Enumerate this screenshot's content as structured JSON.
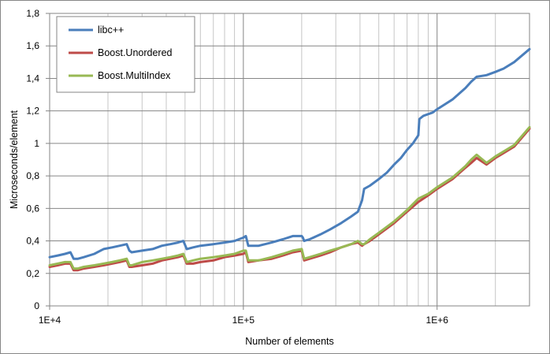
{
  "chart_data": {
    "type": "line",
    "title": "",
    "xlabel": "Number of elements",
    "ylabel": "Microseconds/element",
    "x_scale": "log",
    "xlim": [
      10000,
      3000000
    ],
    "ylim": [
      0,
      1.8
    ],
    "x_ticks": [
      {
        "value": 10000,
        "label": "1E+4"
      },
      {
        "value": 100000,
        "label": "1E+5"
      },
      {
        "value": 1000000,
        "label": "1E+6"
      }
    ],
    "y_ticks": [
      {
        "value": 0,
        "label": "0"
      },
      {
        "value": 0.2,
        "label": "0,2"
      },
      {
        "value": 0.4,
        "label": "0,4"
      },
      {
        "value": 0.6,
        "label": "0,6"
      },
      {
        "value": 0.8,
        "label": "0,8"
      },
      {
        "value": 1.0,
        "label": "1"
      },
      {
        "value": 1.2,
        "label": "1,2"
      },
      {
        "value": 1.4,
        "label": "1,4"
      },
      {
        "value": 1.6,
        "label": "1,6"
      },
      {
        "value": 1.8,
        "label": "1,8"
      }
    ],
    "grid": "horizontal major, vertical log minor",
    "legend_position": "top-left",
    "series": [
      {
        "name": "libc++",
        "color": "#4a7ebb",
        "x": [
          10000,
          11000,
          12000,
          12800,
          13300,
          14000,
          15000,
          17000,
          19000,
          21000,
          23000,
          25000,
          25800,
          26500,
          30000,
          34000,
          38000,
          42000,
          46000,
          49000,
          51000,
          55000,
          60000,
          70000,
          80000,
          90000,
          100000,
          103000,
          106000,
          120000,
          140000,
          160000,
          180000,
          200000,
          203000,
          206000,
          220000,
          250000,
          280000,
          320000,
          360000,
          390000,
          410000,
          420000,
          450000,
          500000,
          550000,
          600000,
          650000,
          700000,
          750000,
          800000,
          810000,
          850000,
          950000,
          1000000,
          1200000,
          1400000,
          1500000,
          1600000,
          1800000,
          2000000,
          2200000,
          2500000,
          3000000
        ],
        "values": [
          0.3,
          0.31,
          0.32,
          0.33,
          0.29,
          0.29,
          0.3,
          0.32,
          0.35,
          0.36,
          0.37,
          0.38,
          0.34,
          0.33,
          0.34,
          0.35,
          0.37,
          0.38,
          0.39,
          0.4,
          0.35,
          0.36,
          0.37,
          0.38,
          0.39,
          0.4,
          0.42,
          0.43,
          0.37,
          0.37,
          0.39,
          0.41,
          0.43,
          0.43,
          0.42,
          0.4,
          0.41,
          0.44,
          0.47,
          0.51,
          0.55,
          0.58,
          0.65,
          0.72,
          0.74,
          0.78,
          0.82,
          0.87,
          0.91,
          0.96,
          1.0,
          1.05,
          1.15,
          1.17,
          1.19,
          1.21,
          1.27,
          1.34,
          1.38,
          1.41,
          1.42,
          1.44,
          1.46,
          1.5,
          1.58
        ]
      },
      {
        "name": "Boost.Unordered",
        "color": "#be4b48",
        "x": [
          10000,
          11000,
          12000,
          12800,
          13300,
          14000,
          15000,
          17000,
          19000,
          21000,
          23000,
          25000,
          25800,
          26500,
          30000,
          34000,
          38000,
          42000,
          46000,
          49000,
          51000,
          55000,
          60000,
          70000,
          80000,
          90000,
          100000,
          103000,
          106000,
          120000,
          140000,
          160000,
          180000,
          200000,
          203000,
          206000,
          220000,
          250000,
          280000,
          320000,
          360000,
          390000,
          410000,
          420000,
          450000,
          500000,
          600000,
          700000,
          800000,
          900000,
          1000000,
          1200000,
          1400000,
          1500000,
          1600000,
          1800000,
          2000000,
          2500000,
          3000000
        ],
        "values": [
          0.24,
          0.25,
          0.26,
          0.26,
          0.22,
          0.22,
          0.23,
          0.24,
          0.25,
          0.26,
          0.27,
          0.28,
          0.24,
          0.24,
          0.25,
          0.26,
          0.28,
          0.29,
          0.3,
          0.31,
          0.26,
          0.26,
          0.27,
          0.28,
          0.3,
          0.31,
          0.32,
          0.33,
          0.27,
          0.28,
          0.29,
          0.31,
          0.33,
          0.34,
          0.31,
          0.28,
          0.29,
          0.31,
          0.33,
          0.36,
          0.38,
          0.39,
          0.37,
          0.38,
          0.4,
          0.44,
          0.51,
          0.58,
          0.64,
          0.68,
          0.72,
          0.78,
          0.85,
          0.88,
          0.91,
          0.87,
          0.91,
          0.98,
          1.09
        ]
      },
      {
        "name": "Boost.MultiIndex",
        "color": "#98b954",
        "x": [
          10000,
          11000,
          12000,
          12800,
          13300,
          14000,
          15000,
          17000,
          19000,
          21000,
          23000,
          25000,
          25800,
          26500,
          30000,
          34000,
          38000,
          42000,
          46000,
          49000,
          51000,
          55000,
          60000,
          70000,
          80000,
          90000,
          100000,
          103000,
          106000,
          120000,
          140000,
          160000,
          180000,
          200000,
          203000,
          206000,
          220000,
          250000,
          280000,
          320000,
          360000,
          390000,
          410000,
          420000,
          450000,
          500000,
          600000,
          700000,
          800000,
          900000,
          1000000,
          1200000,
          1400000,
          1500000,
          1600000,
          1800000,
          2000000,
          2500000,
          3000000
        ],
        "values": [
          0.25,
          0.26,
          0.27,
          0.27,
          0.23,
          0.23,
          0.24,
          0.25,
          0.26,
          0.27,
          0.28,
          0.29,
          0.25,
          0.25,
          0.27,
          0.28,
          0.29,
          0.3,
          0.31,
          0.32,
          0.27,
          0.28,
          0.29,
          0.3,
          0.31,
          0.32,
          0.34,
          0.34,
          0.28,
          0.28,
          0.3,
          0.32,
          0.34,
          0.35,
          0.32,
          0.29,
          0.3,
          0.32,
          0.34,
          0.36,
          0.38,
          0.4,
          0.38,
          0.38,
          0.41,
          0.45,
          0.52,
          0.59,
          0.66,
          0.69,
          0.73,
          0.79,
          0.86,
          0.9,
          0.93,
          0.88,
          0.92,
          0.99,
          1.1
        ]
      }
    ]
  }
}
